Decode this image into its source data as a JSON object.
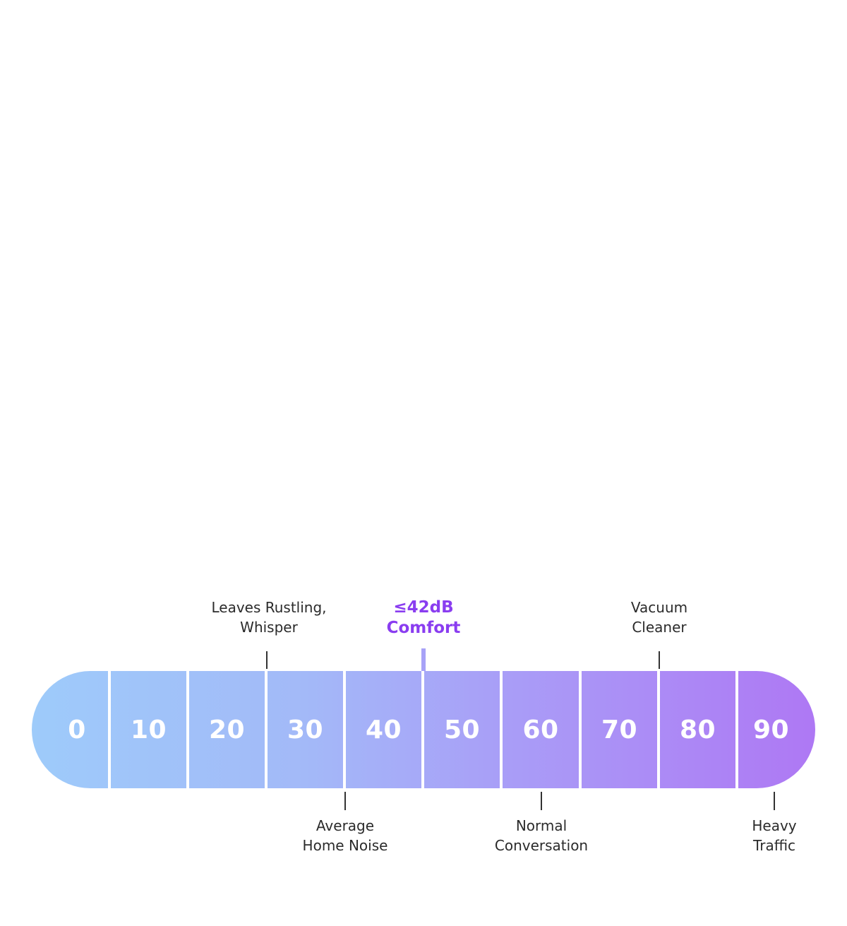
{
  "scale": {
    "unit": "dB",
    "segments": [
      "0",
      "10",
      "20",
      "30",
      "40",
      "50",
      "60",
      "70",
      "80",
      "90"
    ],
    "gradient_colors": [
      "#9ECBFA",
      "#A3B9F8",
      "#A99CF7",
      "#AE78F4"
    ]
  },
  "markers": {
    "leaves": {
      "value": 30,
      "lines": [
        "Leaves Rustling,",
        "Whisper"
      ]
    },
    "comfort": {
      "value": 42,
      "lines": [
        "≤42dB",
        "Comfort"
      ],
      "color": "#8A3DF0"
    },
    "vacuum": {
      "value": 80,
      "lines": [
        "Vacuum",
        "Cleaner"
      ]
    },
    "home_noise": {
      "value": 40,
      "lines": [
        "Average",
        "Home Noise"
      ]
    },
    "conversation": {
      "value": 60,
      "lines": [
        "Normal",
        "Conversation"
      ]
    },
    "traffic": {
      "value": 90,
      "lines": [
        "Heavy",
        "Traffic"
      ]
    }
  }
}
